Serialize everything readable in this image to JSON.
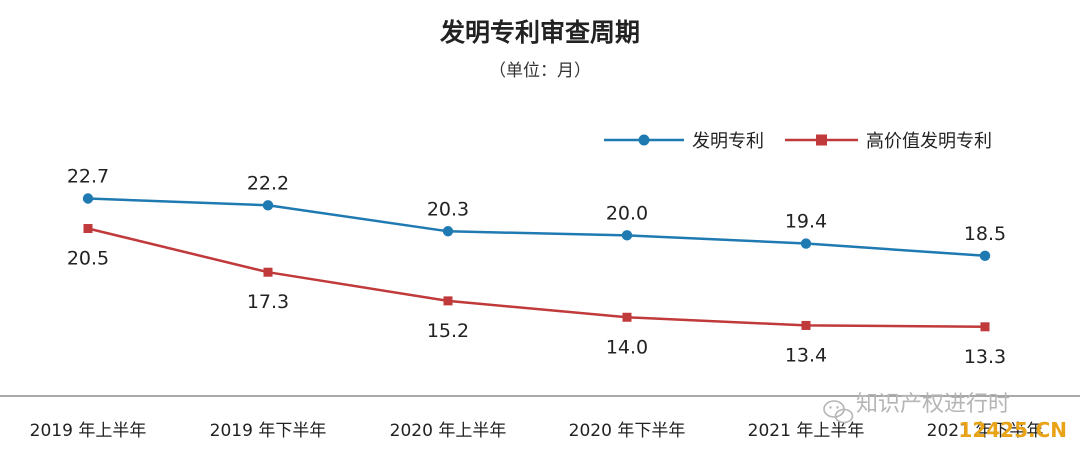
{
  "chart_data": {
    "type": "line",
    "title": "发明专利审查周期",
    "subtitle": "（单位：月）",
    "categories": [
      "2019 年上半年",
      "2019 年下半年",
      "2020 年上半年",
      "2020 年下半年",
      "2021 年上半年",
      "2021 年下半年"
    ],
    "series": [
      {
        "name": "发明专利",
        "color": "#1f7ab2",
        "marker": "circle",
        "values": [
          22.7,
          22.2,
          20.3,
          20.0,
          19.4,
          18.5
        ]
      },
      {
        "name": "高价值发明专利",
        "color": "#c0393b",
        "marker": "square",
        "values": [
          20.5,
          17.3,
          15.2,
          14.0,
          13.4,
          13.3
        ]
      }
    ],
    "legend_position": "top-right",
    "grid": false,
    "data_labels": true
  },
  "watermark": {
    "account_name": "知识产权进行时",
    "site": "12425.CN",
    "icon": "wechat-icon"
  }
}
